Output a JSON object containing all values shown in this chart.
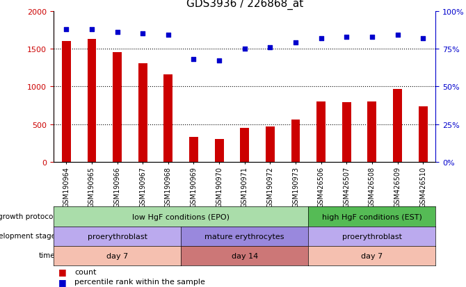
{
  "title": "GDS3936 / 226868_at",
  "samples": [
    "GSM190964",
    "GSM190965",
    "GSM190966",
    "GSM190967",
    "GSM190968",
    "GSM190969",
    "GSM190970",
    "GSM190971",
    "GSM190972",
    "GSM190973",
    "GSM426506",
    "GSM426507",
    "GSM426508",
    "GSM426509",
    "GSM426510"
  ],
  "counts": [
    1600,
    1630,
    1450,
    1310,
    1160,
    330,
    310,
    450,
    470,
    560,
    800,
    790,
    800,
    970,
    740
  ],
  "percentiles": [
    88,
    88,
    86,
    85,
    84,
    68,
    67,
    75,
    76,
    79,
    82,
    83,
    83,
    84,
    82
  ],
  "bar_color": "#cc0000",
  "dot_color": "#0000cc",
  "ylim_left": [
    0,
    2000
  ],
  "ylim_right": [
    0,
    100
  ],
  "yticks_left": [
    0,
    500,
    1000,
    1500,
    2000
  ],
  "yticks_right": [
    0,
    25,
    50,
    75,
    100
  ],
  "grid_lines": [
    500,
    1000,
    1500
  ],
  "annotations": {
    "growth_protocol": {
      "label": "growth protocol",
      "groups": [
        {
          "text": "low HgF conditions (EPO)",
          "start": 0,
          "end": 10,
          "color": "#aaddaa"
        },
        {
          "text": "high HgF conditions (EST)",
          "start": 10,
          "end": 15,
          "color": "#55bb55"
        }
      ]
    },
    "development_stage": {
      "label": "development stage",
      "groups": [
        {
          "text": "proerythroblast",
          "start": 0,
          "end": 5,
          "color": "#bbaaee"
        },
        {
          "text": "mature erythrocytes",
          "start": 5,
          "end": 10,
          "color": "#9988dd"
        },
        {
          "text": "proerythroblast",
          "start": 10,
          "end": 15,
          "color": "#bbaaee"
        }
      ]
    },
    "time": {
      "label": "time",
      "groups": [
        {
          "text": "day 7",
          "start": 0,
          "end": 5,
          "color": "#f5c0b0"
        },
        {
          "text": "day 14",
          "start": 5,
          "end": 10,
          "color": "#cc7777"
        },
        {
          "text": "day 7",
          "start": 10,
          "end": 15,
          "color": "#f5c0b0"
        }
      ]
    }
  },
  "left_axis_color": "#cc0000",
  "right_axis_color": "#0000cc",
  "background_color": "#ffffff",
  "plot_bg_color": "#ffffff"
}
